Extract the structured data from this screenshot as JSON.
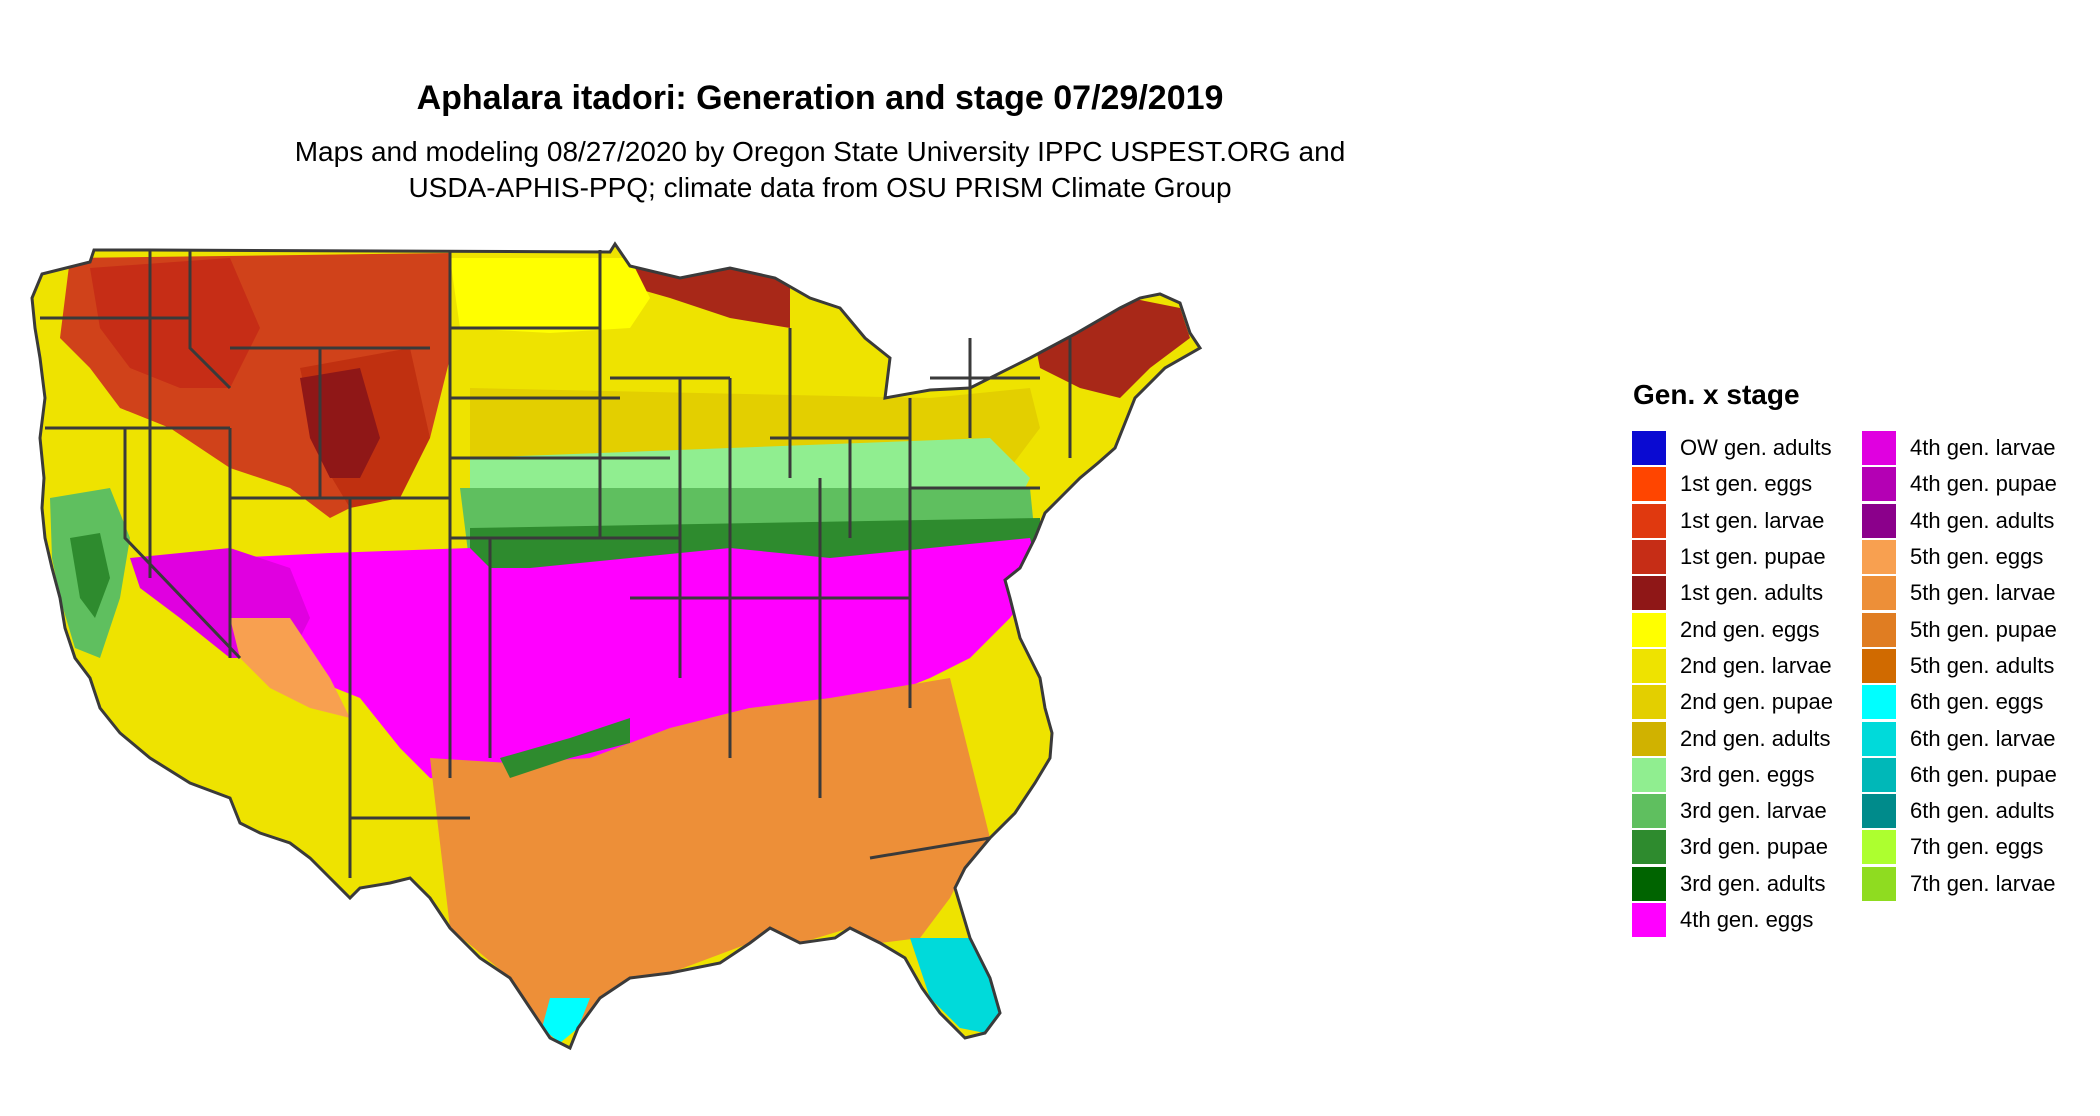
{
  "title": "Aphalara itadori: Generation and stage 07/29/2019",
  "subtitle_line1": "Maps and modeling 08/27/2020 by Oregon State University IPPC USPEST.ORG and",
  "subtitle_line2": "USDA-APHIS-PPQ; climate data from OSU PRISM Climate Group",
  "legend": {
    "title": "Gen. x stage",
    "column1": [
      {
        "label": "OW gen. adults",
        "color": "#0a0ad2"
      },
      {
        "label": "1st gen. eggs",
        "color": "#ff4500"
      },
      {
        "label": "1st gen. larvae",
        "color": "#e0390f"
      },
      {
        "label": "1st gen. pupae",
        "color": "#c62d16"
      },
      {
        "label": "1st gen. adults",
        "color": "#8f1717"
      },
      {
        "label": "2nd gen. eggs",
        "color": "#ffff00"
      },
      {
        "label": "2nd gen. larvae",
        "color": "#eee300"
      },
      {
        "label": "2nd gen. pupae",
        "color": "#e3cf00"
      },
      {
        "label": "2nd gen. adults",
        "color": "#d0b200"
      },
      {
        "label": "3rd gen. eggs",
        "color": "#90ee90"
      },
      {
        "label": "3rd gen. larvae",
        "color": "#5fbf5f"
      },
      {
        "label": "3rd gen. pupae",
        "color": "#2e8b2e"
      },
      {
        "label": "3rd gen. adults",
        "color": "#006400"
      },
      {
        "label": "4th gen. eggs",
        "color": "#ff00ff"
      }
    ],
    "column2": [
      {
        "label": "4th gen. larvae",
        "color": "#e000e0"
      },
      {
        "label": "4th gen. pupae",
        "color": "#b400b4"
      },
      {
        "label": "4th gen. adults",
        "color": "#8b008b"
      },
      {
        "label": "5th gen. eggs",
        "color": "#f8a050"
      },
      {
        "label": "5th gen. larvae",
        "color": "#ed8f38"
      },
      {
        "label": "5th gen. pupae",
        "color": "#e07d22"
      },
      {
        "label": "5th gen. adults",
        "color": "#d06a00"
      },
      {
        "label": "6th gen. eggs",
        "color": "#00ffff"
      },
      {
        "label": "6th gen. larvae",
        "color": "#00dada"
      },
      {
        "label": "6th gen. pupae",
        "color": "#00b8b8"
      },
      {
        "label": "6th gen. adults",
        "color": "#008b8b"
      },
      {
        "label": "7th gen. eggs",
        "color": "#adff2f"
      },
      {
        "label": "7th gen. larvae",
        "color": "#8fdc20"
      }
    ]
  },
  "colors": {
    "state_border": "#3a3a3a",
    "background": "#ffffff"
  }
}
